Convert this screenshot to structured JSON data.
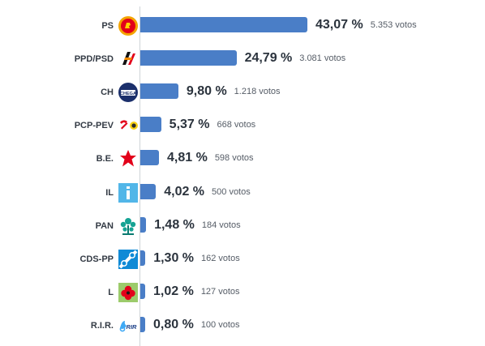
{
  "chart_data": {
    "type": "bar",
    "orientation": "horizontal",
    "categories": [
      "PS",
      "PPD/PSD",
      "CH",
      "PCP-PEV",
      "B.E.",
      "IL",
      "PAN",
      "CDS-PP",
      "L",
      "R.I.R."
    ],
    "values": [
      43.07,
      24.79,
      9.8,
      5.37,
      4.81,
      4.02,
      1.48,
      1.3,
      1.02,
      0.8
    ],
    "value_labels": [
      "43,07 %",
      "24,79 %",
      "9,80 %",
      "5,37 %",
      "4,81 %",
      "4,02 %",
      "1,48 %",
      "1,30 %",
      "1,02 %",
      "0,80 %"
    ],
    "votes_labels": [
      "5.353 votos",
      "3.081 votos",
      "1.218 votos",
      "668 votos",
      "598 votos",
      "500 votos",
      "184 votos",
      "162 votos",
      "127 votos",
      "100 votos"
    ],
    "logos": [
      "ps-logo-icon",
      "psd-logo-icon",
      "chega-logo-icon",
      "cdu-logo-icon",
      "be-logo-icon",
      "il-logo-icon",
      "pan-logo-icon",
      "cds-logo-icon",
      "livre-logo-icon",
      "rir-logo-icon"
    ],
    "bar_color": "#4a7ec7",
    "grid": false
  }
}
